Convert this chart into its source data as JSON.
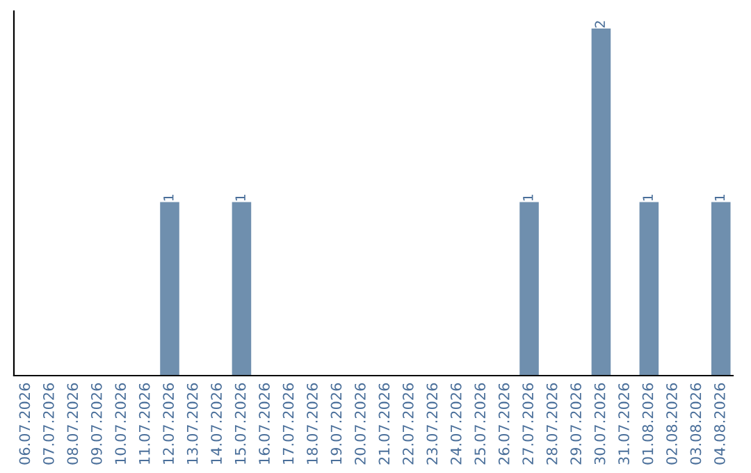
{
  "chart_data": {
    "type": "bar",
    "categories": [
      "06.07.2026",
      "07.07.2026",
      "08.07.2026",
      "09.07.2026",
      "10.07.2026",
      "11.07.2026",
      "12.07.2026",
      "13.07.2026",
      "14.07.2026",
      "15.07.2026",
      "16.07.2026",
      "17.07.2026",
      "18.07.2026",
      "19.07.2026",
      "20.07.2026",
      "21.07.2026",
      "22.07.2026",
      "23.07.2026",
      "24.07.2026",
      "25.07.2026",
      "26.07.2026",
      "27.07.2026",
      "28.07.2026",
      "29.07.2026",
      "30.07.2026",
      "31.07.2026",
      "01.08.2026",
      "02.08.2026",
      "03.08.2026",
      "04.08.2026"
    ],
    "values": [
      0,
      0,
      0,
      0,
      0,
      0,
      1,
      0,
      0,
      1,
      0,
      0,
      0,
      0,
      0,
      0,
      0,
      0,
      0,
      0,
      0,
      1,
      0,
      0,
      2,
      0,
      1,
      0,
      0,
      1
    ],
    "value_labels": [
      null,
      null,
      null,
      null,
      null,
      null,
      "1",
      null,
      null,
      "1",
      null,
      null,
      null,
      null,
      null,
      null,
      null,
      null,
      null,
      null,
      null,
      "1",
      null,
      null,
      "2",
      null,
      "1",
      null,
      null,
      "1"
    ],
    "color": "#6f8fae",
    "tick_labels": "x",
    "grid": false,
    "legend": false
  }
}
